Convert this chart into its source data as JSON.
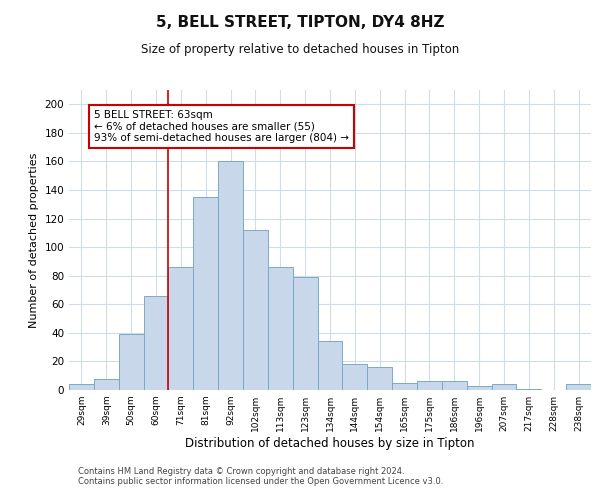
{
  "title": "5, BELL STREET, TIPTON, DY4 8HZ",
  "subtitle": "Size of property relative to detached houses in Tipton",
  "xlabel": "Distribution of detached houses by size in Tipton",
  "ylabel": "Number of detached properties",
  "bin_labels": [
    "29sqm",
    "39sqm",
    "50sqm",
    "60sqm",
    "71sqm",
    "81sqm",
    "92sqm",
    "102sqm",
    "113sqm",
    "123sqm",
    "134sqm",
    "144sqm",
    "154sqm",
    "165sqm",
    "175sqm",
    "186sqm",
    "196sqm",
    "207sqm",
    "217sqm",
    "228sqm",
    "238sqm"
  ],
  "bar_heights": [
    4,
    8,
    39,
    66,
    86,
    135,
    160,
    112,
    86,
    79,
    34,
    18,
    16,
    5,
    6,
    6,
    3,
    4,
    1,
    0,
    4
  ],
  "bar_color": "#c8d8ea",
  "bar_edge_color": "#7aaac8",
  "vline_x_idx": 3.5,
  "vline_color": "#cc0000",
  "annotation_text": "5 BELL STREET: 63sqm\n← 6% of detached houses are smaller (55)\n93% of semi-detached houses are larger (804) →",
  "annotation_box_color": "#ffffff",
  "annotation_box_edge": "#cc0000",
  "ylim": [
    0,
    210
  ],
  "yticks": [
    0,
    20,
    40,
    60,
    80,
    100,
    120,
    140,
    160,
    180,
    200
  ],
  "background_color": "#ffffff",
  "grid_color": "#d0dde8",
  "footer1": "Contains HM Land Registry data © Crown copyright and database right 2024.",
  "footer2": "Contains public sector information licensed under the Open Government Licence v3.0."
}
